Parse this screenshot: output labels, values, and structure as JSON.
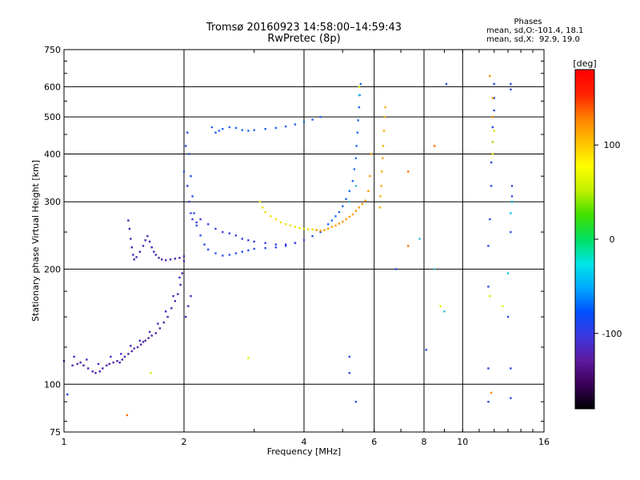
{
  "header": {
    "title_line1": "Tromsø 20160923 14:58:00–14:59:43",
    "title_line2": "RwPretec (8p)"
  },
  "stats": {
    "title": "Phases",
    "line_o": "mean, sd,O:-101.4, 18.1",
    "line_x": "mean, sd,X:  92.9, 19.0"
  },
  "chart_data": {
    "type": "scatter",
    "xlabel": "Frequency [MHz]",
    "ylabel": "Stationary phase Virtual Height [km]",
    "xscale": "log2",
    "yscale": "log",
    "xlim": [
      1,
      16
    ],
    "ylim": [
      75,
      750
    ],
    "xticks": [
      1,
      2,
      4,
      6,
      8,
      10,
      16
    ],
    "yticks": [
      75,
      100,
      200,
      300,
      400,
      500,
      600,
      750
    ],
    "grid": true,
    "colorbar": {
      "label": "[deg]",
      "range": [
        -180,
        180
      ],
      "ticks": [
        100,
        0,
        -100
      ],
      "colormap": [
        "#000000",
        "#3a0058",
        "#5e1aa0",
        "#3c37e0",
        "#0050ff",
        "#00aaff",
        "#00e6e6",
        "#00e060",
        "#40e000",
        "#c0f000",
        "#ffff00",
        "#ffc000",
        "#ff8000",
        "#ff2000",
        "#ff0000"
      ]
    },
    "series": [
      {
        "color": "#5020a8",
        "points": [
          [
            1.05,
            112
          ],
          [
            1.08,
            113
          ],
          [
            1.1,
            114
          ],
          [
            1.12,
            112
          ],
          [
            1.15,
            110
          ],
          [
            1.18,
            108
          ],
          [
            1.2,
            107
          ],
          [
            1.23,
            108
          ],
          [
            1.25,
            110
          ],
          [
            1.28,
            112
          ],
          [
            1.3,
            113
          ],
          [
            1.33,
            114
          ],
          [
            1.36,
            115
          ],
          [
            1.38,
            114
          ],
          [
            1.4,
            116
          ],
          [
            1.42,
            118
          ],
          [
            1.45,
            120
          ],
          [
            1.48,
            122
          ],
          [
            1.5,
            124
          ],
          [
            1.53,
            125
          ],
          [
            1.56,
            127
          ],
          [
            1.58,
            129
          ],
          [
            1.6,
            130
          ],
          [
            1.63,
            132
          ],
          [
            1.66,
            134
          ],
          [
            1.7,
            136
          ],
          [
            1.74,
            140
          ],
          [
            1.78,
            145
          ],
          [
            1.82,
            150
          ],
          [
            1.86,
            158
          ],
          [
            1.9,
            165
          ],
          [
            1.93,
            172
          ],
          [
            1.96,
            182
          ],
          [
            1.98,
            195
          ],
          [
            2.0,
            210
          ]
        ]
      },
      {
        "color": "#4028c8",
        "points": [
          [
            1.0,
            115
          ],
          [
            1.06,
            118
          ],
          [
            1.14,
            116
          ],
          [
            1.22,
            113
          ],
          [
            1.31,
            118
          ],
          [
            1.39,
            120
          ],
          [
            1.47,
            126
          ],
          [
            1.55,
            130
          ],
          [
            1.64,
            137
          ],
          [
            1.72,
            144
          ],
          [
            1.8,
            155
          ],
          [
            1.88,
            170
          ],
          [
            1.95,
            190
          ],
          [
            2.02,
            150
          ],
          [
            2.05,
            160
          ],
          [
            2.08,
            170
          ]
        ]
      },
      {
        "color": "#4a24b0",
        "points": [
          [
            1.45,
            268
          ],
          [
            1.46,
            255
          ],
          [
            1.47,
            240
          ],
          [
            1.48,
            228
          ],
          [
            1.49,
            218
          ],
          [
            1.5,
            212
          ],
          [
            1.52,
            215
          ],
          [
            1.55,
            222
          ],
          [
            1.58,
            230
          ],
          [
            1.6,
            238
          ],
          [
            1.62,
            244
          ],
          [
            1.64,
            236
          ],
          [
            1.66,
            228
          ],
          [
            1.68,
            222
          ],
          [
            1.7,
            218
          ],
          [
            1.73,
            214
          ],
          [
            1.76,
            212
          ],
          [
            1.8,
            211
          ],
          [
            1.85,
            212
          ],
          [
            1.9,
            213
          ],
          [
            1.95,
            214
          ],
          [
            2.0,
            216
          ]
        ]
      },
      {
        "color": "#2a50e8",
        "points": [
          [
            2.0,
            360
          ],
          [
            2.02,
            420
          ],
          [
            2.04,
            455
          ],
          [
            2.06,
            400
          ],
          [
            2.08,
            350
          ],
          [
            2.1,
            310
          ],
          [
            2.12,
            280
          ],
          [
            2.15,
            260
          ],
          [
            2.2,
            245
          ],
          [
            2.25,
            232
          ],
          [
            2.3,
            225
          ],
          [
            2.4,
            220
          ],
          [
            2.5,
            217
          ],
          [
            2.6,
            218
          ],
          [
            2.7,
            220
          ],
          [
            2.8,
            222
          ],
          [
            2.9,
            224
          ],
          [
            3.0,
            226
          ],
          [
            3.2,
            227
          ],
          [
            3.4,
            228
          ],
          [
            3.6,
            230
          ],
          [
            3.8,
            234
          ],
          [
            4.0,
            238
          ],
          [
            4.2,
            244
          ],
          [
            4.4,
            250
          ]
        ]
      },
      {
        "color": "#3a3ee0",
        "points": [
          [
            2.04,
            330
          ],
          [
            2.06,
            300
          ],
          [
            2.08,
            280
          ],
          [
            2.1,
            270
          ],
          [
            2.15,
            265
          ],
          [
            2.2,
            270
          ],
          [
            2.3,
            262
          ],
          [
            2.4,
            255
          ],
          [
            2.5,
            250
          ],
          [
            2.6,
            248
          ],
          [
            2.7,
            245
          ],
          [
            2.8,
            240
          ],
          [
            2.9,
            238
          ],
          [
            3.0,
            236
          ],
          [
            3.2,
            234
          ],
          [
            3.4,
            232
          ],
          [
            3.6,
            232
          ],
          [
            3.8,
            234
          ]
        ]
      },
      {
        "color": "#2266ee",
        "points": [
          [
            2.35,
            470
          ],
          [
            2.4,
            455
          ],
          [
            2.45,
            460
          ],
          [
            2.5,
            465
          ],
          [
            2.6,
            470
          ],
          [
            2.7,
            468
          ],
          [
            2.8,
            462
          ],
          [
            2.9,
            460
          ],
          [
            3.0,
            462
          ],
          [
            3.2,
            465
          ],
          [
            3.4,
            468
          ],
          [
            3.6,
            472
          ],
          [
            3.8,
            478
          ],
          [
            4.0,
            485
          ],
          [
            4.2,
            492
          ],
          [
            4.4,
            500
          ]
        ]
      },
      {
        "color": "#f0e000",
        "points": [
          [
            3.1,
            300
          ],
          [
            3.15,
            290
          ],
          [
            3.2,
            282
          ],
          [
            3.3,
            275
          ],
          [
            3.4,
            270
          ],
          [
            3.5,
            265
          ],
          [
            3.6,
            262
          ],
          [
            3.7,
            260
          ],
          [
            3.8,
            258
          ],
          [
            3.9,
            256
          ],
          [
            4.0,
            255
          ],
          [
            4.1,
            254
          ],
          [
            4.2,
            254
          ]
        ]
      },
      {
        "color": "#ff9a00",
        "points": [
          [
            4.3,
            253
          ],
          [
            4.4,
            252
          ],
          [
            4.5,
            253
          ],
          [
            4.6,
            255
          ],
          [
            4.7,
            258
          ],
          [
            4.8,
            260
          ],
          [
            4.9,
            263
          ],
          [
            5.0,
            266
          ],
          [
            5.1,
            270
          ],
          [
            5.2,
            274
          ],
          [
            5.3,
            278
          ],
          [
            5.4,
            284
          ],
          [
            5.5,
            290
          ],
          [
            5.6,
            296
          ],
          [
            5.7,
            302
          ],
          [
            5.8,
            320
          ],
          [
            5.85,
            350
          ],
          [
            5.9,
            400
          ]
        ]
      },
      {
        "color": "#1e6cf0",
        "points": [
          [
            4.6,
            262
          ],
          [
            4.7,
            268
          ],
          [
            4.8,
            275
          ],
          [
            4.9,
            282
          ],
          [
            5.0,
            292
          ],
          [
            5.1,
            305
          ],
          [
            5.2,
            320
          ],
          [
            5.3,
            340
          ],
          [
            5.35,
            365
          ],
          [
            5.4,
            390
          ],
          [
            5.42,
            420
          ],
          [
            5.45,
            455
          ],
          [
            5.47,
            490
          ],
          [
            5.5,
            530
          ],
          [
            5.52,
            570
          ],
          [
            5.55,
            610
          ]
        ]
      },
      {
        "color": "#f5b000",
        "points": [
          [
            6.2,
            290
          ],
          [
            6.22,
            310
          ],
          [
            6.25,
            330
          ],
          [
            6.27,
            360
          ],
          [
            6.3,
            390
          ],
          [
            6.32,
            420
          ],
          [
            6.35,
            460
          ],
          [
            6.37,
            500
          ],
          [
            6.4,
            530
          ]
        ]
      },
      {
        "color": "#2a48e0",
        "points": [
          [
            11.6,
            90
          ],
          [
            11.6,
            110
          ],
          [
            11.6,
            180
          ],
          [
            11.6,
            230
          ],
          [
            11.7,
            270
          ],
          [
            11.8,
            330
          ],
          [
            11.8,
            380
          ],
          [
            11.9,
            430
          ],
          [
            11.9,
            470
          ],
          [
            12.0,
            520
          ],
          [
            12.0,
            560
          ],
          [
            12.0,
            610
          ]
        ]
      },
      {
        "color": "#ff8c00",
        "points": [
          [
            11.8,
            95
          ],
          [
            11.9,
            560
          ],
          [
            11.9,
            500
          ],
          [
            11.7,
            640
          ]
        ]
      },
      {
        "color": "#e0e000",
        "points": [
          [
            11.9,
            400
          ],
          [
            11.9,
            430
          ],
          [
            12.0,
            460
          ],
          [
            11.7,
            170
          ]
        ]
      },
      {
        "color": "#2a48e0",
        "points": [
          [
            13.2,
            92
          ],
          [
            13.2,
            110
          ],
          [
            13.0,
            150
          ],
          [
            13.2,
            250
          ],
          [
            13.3,
            310
          ],
          [
            13.3,
            330
          ],
          [
            13.2,
            590
          ],
          [
            13.2,
            610
          ]
        ]
      },
      {
        "color": "#00c8e0",
        "points": [
          [
            13.0,
            195
          ],
          [
            13.2,
            280
          ],
          [
            13.3,
            300
          ]
        ]
      },
      {
        "color": "#ff7000",
        "points": [
          [
            1.44,
            83
          ],
          [
            7.3,
            360
          ],
          [
            7.3,
            230
          ],
          [
            8.5,
            420
          ]
        ]
      },
      {
        "color": "#30c0e0",
        "points": [
          [
            5.2,
            300
          ],
          [
            5.4,
            330
          ],
          [
            7.8,
            240
          ],
          [
            8.5,
            200
          ],
          [
            5.5,
            570
          ],
          [
            9.0,
            155
          ]
        ]
      },
      {
        "color": "#2a48e0",
        "points": [
          [
            1.02,
            94
          ],
          [
            5.2,
            107
          ],
          [
            5.2,
            118
          ],
          [
            5.4,
            90
          ],
          [
            8.1,
            123
          ],
          [
            9.1,
            610
          ],
          [
            6.8,
            200
          ]
        ]
      },
      {
        "color": "#e0f000",
        "points": [
          [
            1.65,
            107
          ],
          [
            2.9,
            117
          ],
          [
            5.5,
            600
          ],
          [
            8.8,
            160
          ],
          [
            12.6,
            160
          ]
        ]
      }
    ]
  }
}
